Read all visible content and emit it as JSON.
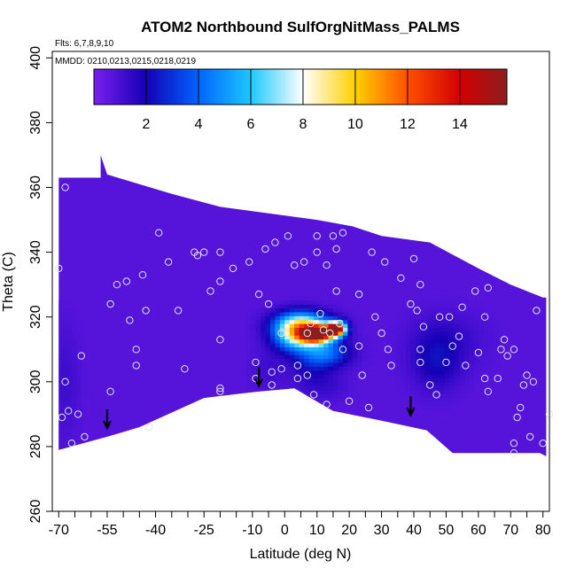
{
  "chart_data": {
    "type": "heatmap",
    "title": "ATOM2 Northbound SulfOrgNitMass_PALMS",
    "flights_note": "Flts: 6,7,8,9,10",
    "dates_note": "MMDD: 0210,0213,0215,0218,0219",
    "xlabel": "Latitude (deg N)",
    "ylabel": "Theta (C)",
    "xlim": [
      -72,
      82
    ],
    "ylim": [
      260,
      402
    ],
    "xticks": [
      -70,
      -55,
      -40,
      -25,
      -10,
      0,
      10,
      20,
      30,
      40,
      50,
      60,
      70,
      80
    ],
    "xtick_labels": [
      "-70",
      "-55",
      "-40",
      "-25",
      "-10",
      "0",
      "10",
      "20",
      "30",
      "40",
      "50",
      "60",
      "70",
      "80"
    ],
    "x_minor_ticks": [
      -65,
      -60,
      -50,
      -45,
      -35,
      -30,
      -20,
      -15,
      -5,
      5,
      15,
      25,
      35,
      45,
      55,
      65,
      75
    ],
    "yticks": [
      260,
      280,
      300,
      320,
      340,
      360,
      380,
      400
    ],
    "ytick_labels": [
      "260",
      "280",
      "300",
      "320",
      "340",
      "360",
      "380",
      "400"
    ],
    "colorbar": {
      "range": [
        0,
        15.8
      ],
      "ticks": [
        2,
        4,
        6,
        8,
        10,
        12,
        14
      ],
      "tick_labels": [
        "2",
        "4",
        "6",
        "8",
        "10",
        "12",
        "14"
      ],
      "box_edges": [
        0,
        2,
        4,
        6,
        8,
        10,
        12,
        14,
        15.8
      ],
      "colors": [
        "#7a1ff0",
        "#1400b4",
        "#0064ff",
        "#1ec8ff",
        "#ffffff",
        "#ffd000",
        "#ff5000",
        "#d20000",
        "#8c1e1e"
      ]
    },
    "field": {
      "background_value": 0.7,
      "upper_boundary": [
        [
          -70,
          363
        ],
        [
          -57,
          363
        ],
        [
          -57,
          370
        ],
        [
          -55,
          364
        ],
        [
          -35,
          358
        ],
        [
          -20,
          354
        ],
        [
          -5,
          352
        ],
        [
          10,
          350
        ],
        [
          21,
          348
        ],
        [
          30,
          345
        ],
        [
          45,
          343
        ],
        [
          60,
          335
        ],
        [
          70,
          330
        ],
        [
          80,
          326
        ],
        [
          81,
          326
        ]
      ],
      "lower_boundary": [
        [
          81,
          277
        ],
        [
          79,
          278
        ],
        [
          52,
          278
        ],
        [
          44,
          285
        ],
        [
          30,
          288
        ],
        [
          15,
          291
        ],
        [
          3,
          298
        ],
        [
          -8,
          297
        ],
        [
          -25,
          295
        ],
        [
          -45,
          286
        ],
        [
          -55,
          283
        ],
        [
          -70,
          279
        ]
      ],
      "features": [
        {
          "type": "plume",
          "lat": 10,
          "theta": 315,
          "peak": 15.5,
          "sigma_lat": 3.5,
          "sigma_theta": 1.8
        },
        {
          "type": "plume",
          "lat": 16,
          "theta": 316.5,
          "peak": 15.5,
          "sigma_lat": 2.0,
          "sigma_theta": 1.5
        },
        {
          "type": "plume",
          "lat": 4,
          "theta": 315,
          "peak": 8.5,
          "sigma_lat": 5,
          "sigma_theta": 3.5
        },
        {
          "type": "plume",
          "lat": 6,
          "theta": 318.5,
          "peak": 4.5,
          "sigma_lat": 6,
          "sigma_theta": 2.5
        },
        {
          "type": "plume",
          "lat": 13,
          "theta": 309,
          "peak": 4.0,
          "sigma_lat": 5,
          "sigma_theta": 3
        },
        {
          "type": "plume",
          "lat": 8,
          "theta": 305,
          "peak": 1.8,
          "sigma_lat": 4,
          "sigma_theta": 5
        },
        {
          "type": "plume",
          "lat": 47,
          "theta": 306,
          "peak": 2.0,
          "sigma_lat": 5,
          "sigma_theta": 6
        },
        {
          "type": "plume",
          "lat": 50,
          "theta": 313,
          "peak": 1.4,
          "sigma_lat": 8,
          "sigma_theta": 6
        },
        {
          "type": "plume",
          "lat": -5,
          "theta": 304,
          "peak": 1.2,
          "sigma_lat": 4,
          "sigma_theta": 4
        },
        {
          "type": "plume",
          "lat": 14,
          "theta": 299,
          "peak": 1.2,
          "sigma_lat": 4,
          "sigma_theta": 3
        },
        {
          "type": "plume",
          "lat": -68,
          "theta": 300,
          "peak": 1.2,
          "sigma_lat": 3,
          "sigma_theta": 12
        }
      ],
      "observations": [
        [
          -70,
          335
        ],
        [
          -68,
          360
        ],
        [
          -68,
          300
        ],
        [
          -69,
          289
        ],
        [
          -67,
          291
        ],
        [
          -66,
          281
        ],
        [
          -63,
          308
        ],
        [
          -64,
          290
        ],
        [
          -62,
          283
        ],
        [
          -54,
          324
        ],
        [
          -54,
          297
        ],
        [
          -52,
          330
        ],
        [
          -49,
          331
        ],
        [
          -48,
          319
        ],
        [
          -46,
          310
        ],
        [
          -46,
          305
        ],
        [
          -44,
          333
        ],
        [
          -43,
          322
        ],
        [
          -42,
          286
        ],
        [
          -39,
          346
        ],
        [
          -36,
          337
        ],
        [
          -33,
          322
        ],
        [
          -31,
          304
        ],
        [
          -28,
          340
        ],
        [
          -27,
          339
        ],
        [
          -25,
          340
        ],
        [
          -23,
          328
        ],
        [
          -20,
          340
        ],
        [
          -20,
          331
        ],
        [
          -20,
          313
        ],
        [
          -20,
          298
        ],
        [
          -20,
          297
        ],
        [
          -16,
          335
        ],
        [
          -11,
          337
        ],
        [
          -9,
          306
        ],
        [
          -9,
          301
        ],
        [
          -8,
          327
        ],
        [
          -6,
          341
        ],
        [
          -5,
          324
        ],
        [
          -4,
          303
        ],
        [
          -4,
          299
        ],
        [
          -3,
          343
        ],
        [
          -1,
          315
        ],
        [
          -1,
          304
        ],
        [
          1,
          345
        ],
        [
          3,
          336
        ],
        [
          4,
          305
        ],
        [
          4,
          301
        ],
        [
          6,
          337
        ],
        [
          7,
          315
        ],
        [
          7,
          302
        ],
        [
          8,
          318
        ],
        [
          9,
          296
        ],
        [
          10,
          345
        ],
        [
          10,
          340
        ],
        [
          11,
          321
        ],
        [
          12,
          316
        ],
        [
          13,
          336
        ],
        [
          13,
          293
        ],
        [
          14,
          315
        ],
        [
          15,
          345
        ],
        [
          16,
          341
        ],
        [
          16,
          328
        ],
        [
          18,
          346
        ],
        [
          17,
          318
        ],
        [
          18,
          310
        ],
        [
          20,
          294
        ],
        [
          23,
          327
        ],
        [
          23,
          311
        ],
        [
          24,
          302
        ],
        [
          26,
          292
        ],
        [
          27,
          340
        ],
        [
          28,
          320
        ],
        [
          30,
          315
        ],
        [
          32,
          310
        ],
        [
          33,
          305
        ],
        [
          36,
          332
        ],
        [
          39,
          324
        ],
        [
          40,
          338
        ],
        [
          41,
          322
        ],
        [
          42,
          310
        ],
        [
          42,
          306
        ],
        [
          43,
          317
        ],
        [
          45,
          299
        ],
        [
          47,
          296
        ],
        [
          48,
          320
        ],
        [
          50,
          306
        ],
        [
          52,
          311
        ],
        [
          54,
          314
        ],
        [
          55,
          323
        ],
        [
          56,
          305
        ],
        [
          60,
          309
        ],
        [
          62,
          320
        ],
        [
          62,
          301
        ],
        [
          63,
          297
        ],
        [
          66,
          301
        ],
        [
          67,
          310
        ],
        [
          68,
          313
        ],
        [
          69,
          308
        ],
        [
          71,
          310
        ],
        [
          72,
          289
        ],
        [
          73,
          292
        ],
        [
          74,
          299
        ],
        [
          75,
          302
        ],
        [
          77,
          300
        ],
        [
          76,
          283
        ],
        [
          78,
          322
        ],
        [
          80,
          281
        ],
        [
          71,
          281
        ],
        [
          71,
          278
        ],
        [
          82,
          290
        ],
        [
          59,
          328
        ],
        [
          51,
          320
        ],
        [
          42,
          330
        ],
        [
          31,
          337
        ],
        [
          63,
          329
        ]
      ],
      "arrows_lat": [
        -55,
        -8,
        39
      ]
    }
  }
}
